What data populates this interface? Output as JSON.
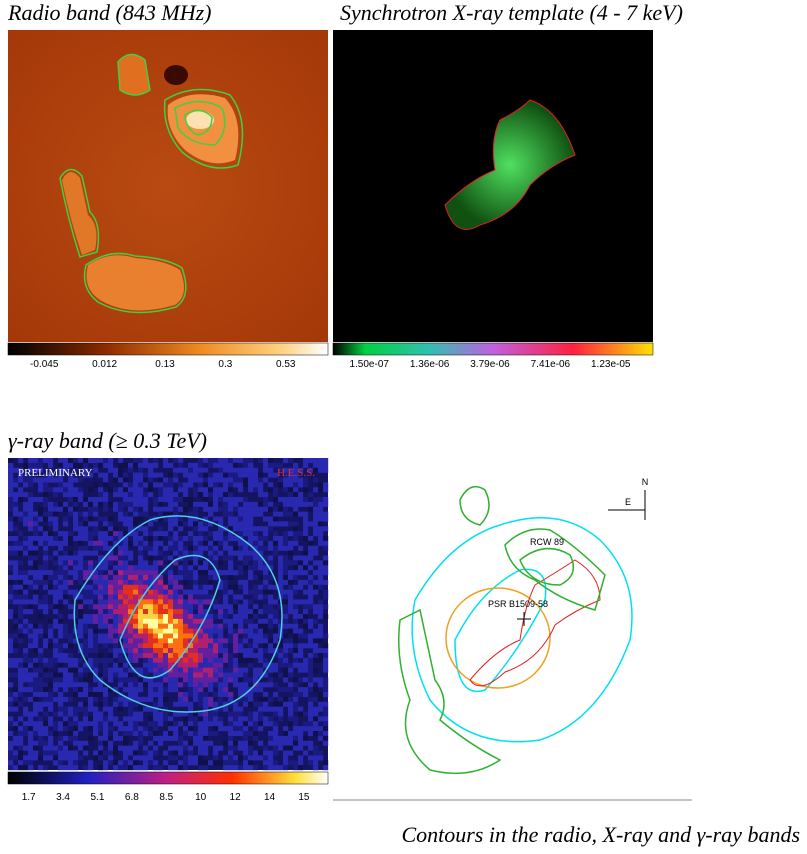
{
  "panels": [
    {
      "title": "Radio band (843 MHz)",
      "colorbar": [
        "-0.045",
        "0.012",
        "0.13",
        "0.3",
        "0.53"
      ]
    },
    {
      "title": "Synchrotron X-ray template (4 - 7 keV)",
      "colorbar": [
        "1.50e-07",
        "1.36e-06",
        "3.79e-06",
        "7.41e-06",
        "1.23e-05"
      ]
    },
    {
      "title": "γ-ray band (≥ 0.3 TeV)",
      "colorbar": [
        "1.7",
        "3.4",
        "5.1",
        "6.8",
        "8.5",
        "10",
        "12",
        "14",
        "15"
      ],
      "labels": [
        "PRELIMINARY",
        "H.E.S.S."
      ]
    },
    {
      "labels": [
        "N",
        "E",
        "RCW 89",
        "PSR B1509-58"
      ]
    }
  ],
  "caption": "Contours in the radio, X-ray and γ-ray bands"
}
